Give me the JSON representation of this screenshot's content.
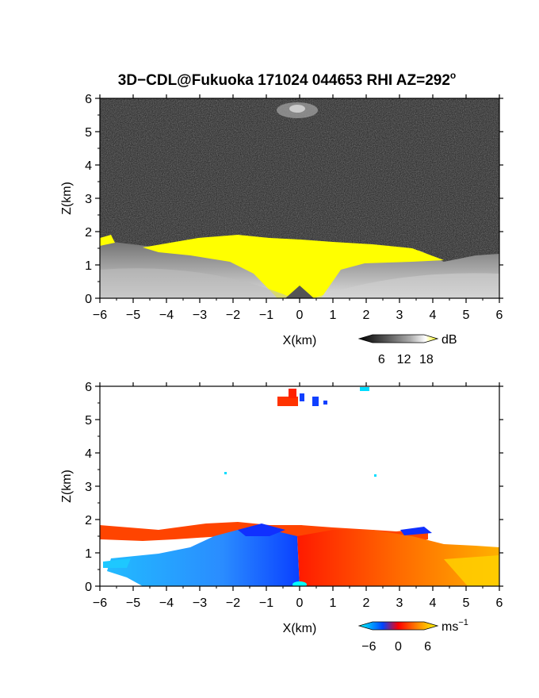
{
  "title": "3D−CDL@Fukuoka 171024 044653 RHI AZ=292",
  "title_sup": "o",
  "chart_data": [
    {
      "type": "heatmap",
      "name": "reflectivity",
      "xlabel": "X(km)",
      "ylabel": "Z(km)",
      "xlim": [
        -6,
        6
      ],
      "ylim": [
        0,
        6
      ],
      "xticks": [
        "−6",
        "−5",
        "−4",
        "−3",
        "−2",
        "−1",
        "0",
        "1",
        "2",
        "3",
        "4",
        "5",
        "6"
      ],
      "yticks": [
        "0",
        "1",
        "2",
        "3",
        "4",
        "5",
        "6"
      ],
      "colorbar": {
        "unit": "dB",
        "ticks": [
          "6",
          "12",
          "18"
        ],
        "range": [
          0,
          21
        ],
        "colors": [
          "#000000",
          "#555555",
          "#aaaaaa",
          "#ffffff",
          "#ffff00"
        ]
      },
      "background_color": "#202020",
      "features": {
        "boundary_layer_top_km": [
          [
            -6,
            1.7
          ],
          [
            -4,
            1.55
          ],
          [
            -3,
            1.75
          ],
          [
            -2,
            1.75
          ],
          [
            -1,
            1.7
          ],
          [
            0,
            1.6
          ],
          [
            1,
            1.55
          ],
          [
            2,
            1.55
          ],
          [
            3,
            1.55
          ],
          [
            4,
            1.1
          ],
          [
            5,
            1.25
          ],
          [
            6,
            1.3
          ]
        ],
        "strong_echo_region_color": "#ffff00",
        "upper_echo": {
          "x": [
            -0.7,
            1.0
          ],
          "z": [
            5.5,
            6.0
          ]
        }
      }
    },
    {
      "type": "heatmap",
      "name": "doppler-velocity",
      "xlabel": "X(km)",
      "ylabel": "Z(km)",
      "xlim": [
        -6,
        6
      ],
      "ylim": [
        0,
        6
      ],
      "xticks": [
        "−6",
        "−5",
        "−4",
        "−3",
        "−2",
        "−1",
        "0",
        "1",
        "2",
        "3",
        "4",
        "5",
        "6"
      ],
      "yticks": [
        "0",
        "1",
        "2",
        "3",
        "4",
        "5",
        "6"
      ],
      "colorbar": {
        "unit": "ms",
        "unit_sup": "−1",
        "ticks": [
          "−6",
          "0",
          "6"
        ],
        "range": [
          -8,
          8
        ],
        "colors": [
          "#00ffff",
          "#0044ff",
          "#ff0000",
          "#ff8800",
          "#ffff00"
        ]
      },
      "features": {
        "negative_velocity_region": {
          "x": [
            -5.8,
            0
          ],
          "z": [
            0,
            1.5
          ],
          "color": "#1e6fff"
        },
        "positive_velocity_region": {
          "x": [
            0,
            6
          ],
          "z": [
            0,
            1.5
          ],
          "color": "#ff5500"
        },
        "upper_layer_color": "#ff4400",
        "upper_echo": {
          "x": [
            -0.6,
            0.8
          ],
          "z": [
            5.4,
            5.9
          ]
        }
      }
    }
  ]
}
